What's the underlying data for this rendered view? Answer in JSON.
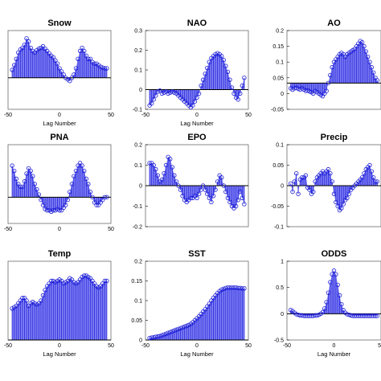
{
  "colors": {
    "stem": "#2b2bdc",
    "marker": "#1a1ad6",
    "fill": "#5a5af0",
    "axis": "#000000",
    "frame": "#6b6b6b"
  },
  "chart_data": [
    {
      "type": "stem",
      "title": "Snow",
      "xlabel": "Lag Number",
      "xlim": [
        -50,
        50
      ],
      "ylim": [
        -0.2,
        0.3
      ],
      "xticks": [
        "-50",
        "0",
        "50"
      ],
      "yticks": [],
      "x": [
        -46,
        -44,
        -42,
        -40,
        -38,
        -36,
        -34,
        -32,
        -30,
        -28,
        -26,
        -24,
        -22,
        -20,
        -18,
        -16,
        -14,
        -12,
        -10,
        -8,
        -6,
        -4,
        -2,
        0,
        2,
        4,
        6,
        8,
        10,
        12,
        14,
        16,
        18,
        20,
        22,
        24,
        26,
        28,
        30,
        32,
        34,
        36,
        38,
        40,
        42,
        44,
        46
      ],
      "values": [
        0.05,
        0.08,
        0.12,
        0.16,
        0.18,
        0.19,
        0.21,
        0.25,
        0.23,
        0.19,
        0.17,
        0.16,
        0.175,
        0.185,
        0.19,
        0.2,
        0.185,
        0.17,
        0.155,
        0.14,
        0.13,
        0.11,
        0.09,
        0.06,
        0.04,
        0.02,
        0.0,
        -0.01,
        -0.02,
        0.0,
        0.02,
        0.06,
        0.12,
        0.17,
        0.19,
        0.17,
        0.14,
        0.12,
        0.12,
        0.1,
        0.09,
        0.09,
        0.08,
        0.07,
        0.065,
        0.06,
        0.06
      ]
    },
    {
      "type": "stem",
      "title": "NAO",
      "xlabel": "Lag Number",
      "xlim": [
        -50,
        50
      ],
      "ylim": [
        -0.1,
        0.3
      ],
      "xticks": [
        "-50",
        "0",
        "50"
      ],
      "yticks": [
        "0.3",
        "0.2",
        "0.1",
        "0",
        "-0.1"
      ],
      "x": [
        -46,
        -44,
        -42,
        -40,
        -38,
        -36,
        -34,
        -32,
        -30,
        -28,
        -26,
        -24,
        -22,
        -20,
        -18,
        -16,
        -14,
        -12,
        -10,
        -8,
        -6,
        -4,
        -2,
        0,
        2,
        4,
        6,
        8,
        10,
        12,
        14,
        16,
        18,
        20,
        22,
        24,
        26,
        28,
        30,
        32,
        34,
        36,
        38,
        40,
        42,
        44,
        46
      ],
      "values": [
        -0.08,
        -0.07,
        -0.05,
        -0.03,
        -0.01,
        -0.005,
        -0.02,
        -0.015,
        -0.01,
        -0.02,
        -0.015,
        -0.01,
        -0.015,
        -0.02,
        -0.03,
        -0.04,
        -0.05,
        -0.06,
        -0.07,
        -0.08,
        -0.09,
        -0.08,
        -0.06,
        -0.04,
        -0.02,
        0.02,
        0.05,
        0.08,
        0.11,
        0.14,
        0.16,
        0.17,
        0.18,
        0.185,
        0.18,
        0.17,
        0.15,
        0.12,
        0.09,
        0.05,
        0.01,
        -0.02,
        -0.04,
        -0.05,
        -0.02,
        0.02,
        0.06
      ]
    },
    {
      "type": "stem",
      "title": "AO",
      "xlabel": "",
      "xlim": [
        -50,
        50
      ],
      "ylim": [
        -0.1,
        0.2
      ],
      "xticks": [],
      "yticks": [
        "0.2",
        "0.15",
        "0.1",
        "0.05",
        "0",
        "-0.05"
      ],
      "x": [
        -46,
        -44,
        -42,
        -40,
        -38,
        -36,
        -34,
        -32,
        -30,
        -28,
        -26,
        -24,
        -22,
        -20,
        -18,
        -16,
        -14,
        -12,
        -10,
        -8,
        -6,
        -4,
        -2,
        0,
        2,
        4,
        6,
        8,
        10,
        12,
        14,
        16,
        18,
        20,
        22,
        24,
        26,
        28,
        30,
        32,
        34,
        36,
        38,
        40,
        42,
        44,
        46
      ],
      "values": [
        -0.02,
        -0.025,
        -0.02,
        -0.018,
        -0.022,
        -0.025,
        -0.02,
        -0.025,
        -0.03,
        -0.028,
        -0.032,
        -0.035,
        -0.04,
        -0.03,
        -0.035,
        -0.04,
        -0.045,
        -0.05,
        -0.04,
        -0.03,
        0.0,
        0.03,
        0.06,
        0.08,
        0.09,
        0.1,
        0.11,
        0.115,
        0.11,
        0.1,
        0.11,
        0.115,
        0.12,
        0.125,
        0.13,
        0.14,
        0.15,
        0.16,
        0.155,
        0.14,
        0.12,
        0.1,
        0.08,
        0.06,
        0.04,
        0.02,
        0.01
      ]
    },
    {
      "type": "stem",
      "title": "PNA",
      "xlabel": "",
      "xlim": [
        -50,
        50
      ],
      "ylim": [
        -0.1,
        0.2
      ],
      "xticks": [
        "-50",
        "0",
        "50"
      ],
      "yticks": [],
      "x": [
        -46,
        -44,
        -42,
        -40,
        -38,
        -36,
        -34,
        -32,
        -30,
        -28,
        -26,
        -24,
        -22,
        -20,
        -18,
        -16,
        -14,
        -12,
        -10,
        -8,
        -6,
        -4,
        -2,
        0,
        2,
        4,
        6,
        8,
        10,
        12,
        14,
        16,
        18,
        20,
        22,
        24,
        26,
        28,
        30,
        32,
        34,
        36,
        38,
        40,
        42,
        44,
        46
      ],
      "values": [
        0.12,
        0.1,
        0.07,
        0.05,
        0.04,
        0.04,
        0.06,
        0.09,
        0.11,
        0.1,
        0.08,
        0.05,
        0.03,
        0.01,
        -0.01,
        -0.03,
        -0.045,
        -0.05,
        -0.05,
        -0.055,
        -0.05,
        -0.05,
        -0.045,
        -0.05,
        -0.05,
        -0.04,
        -0.03,
        -0.01,
        0.02,
        0.05,
        0.08,
        0.1,
        0.12,
        0.13,
        0.12,
        0.1,
        0.07,
        0.05,
        0.02,
        0.0,
        -0.02,
        -0.03,
        -0.03,
        -0.02,
        -0.01,
        0.0,
        0.0
      ]
    },
    {
      "type": "stem",
      "title": "EPO",
      "xlabel": "",
      "xlim": [
        -50,
        50
      ],
      "ylim": [
        -0.2,
        0.2
      ],
      "xticks": [],
      "yticks": [
        "0.2",
        "0.1",
        "0",
        "-0.1",
        "-0.2"
      ],
      "x": [
        -46,
        -44,
        -42,
        -40,
        -38,
        -36,
        -34,
        -32,
        -30,
        -28,
        -26,
        -24,
        -22,
        -20,
        -18,
        -16,
        -14,
        -12,
        -10,
        -8,
        -6,
        -4,
        -2,
        0,
        2,
        4,
        6,
        8,
        10,
        12,
        14,
        16,
        18,
        20,
        22,
        24,
        26,
        28,
        30,
        32,
        34,
        36,
        38,
        40,
        42,
        44,
        46
      ],
      "values": [
        0.11,
        0.11,
        0.1,
        0.08,
        0.05,
        0.02,
        0.03,
        0.06,
        0.1,
        0.14,
        0.13,
        0.09,
        0.05,
        0.02,
        0.0,
        -0.02,
        -0.05,
        -0.07,
        -0.08,
        -0.07,
        -0.06,
        -0.06,
        -0.05,
        -0.06,
        -0.04,
        -0.02,
        0.0,
        -0.02,
        -0.04,
        -0.06,
        -0.08,
        -0.05,
        -0.02,
        0.02,
        0.05,
        0.04,
        0.0,
        -0.03,
        -0.06,
        -0.08,
        -0.1,
        -0.11,
        -0.1,
        -0.07,
        -0.03,
        -0.06,
        -0.09
      ]
    },
    {
      "type": "stem",
      "title": "Precip",
      "xlabel": "",
      "xlim": [
        -50,
        50
      ],
      "ylim": [
        -0.1,
        0.1
      ],
      "xticks": [],
      "yticks": [
        "0.1",
        "0.05",
        "0",
        "-0.05",
        "-0.1"
      ],
      "x": [
        -46,
        -44,
        -42,
        -40,
        -38,
        -36,
        -34,
        -32,
        -30,
        -28,
        -26,
        -24,
        -22,
        -20,
        -18,
        -16,
        -14,
        -12,
        -10,
        -8,
        -6,
        -4,
        -2,
        0,
        2,
        4,
        6,
        8,
        10,
        12,
        14,
        16,
        18,
        20,
        22,
        24,
        26,
        28,
        30,
        32,
        34,
        36,
        38,
        40,
        42,
        44,
        46
      ],
      "values": [
        0.005,
        -0.015,
        0.01,
        0.03,
        -0.02,
        0.015,
        0.02,
        0.02,
        0.025,
        -0.005,
        -0.01,
        -0.02,
        -0.015,
        0.01,
        0.02,
        0.025,
        0.03,
        0.035,
        0.03,
        0.035,
        0.04,
        0.03,
        0.01,
        -0.02,
        -0.04,
        -0.05,
        -0.06,
        -0.055,
        -0.045,
        -0.035,
        -0.03,
        -0.02,
        -0.01,
        -0.005,
        0.0,
        0.005,
        0.01,
        0.015,
        0.02,
        0.03,
        0.04,
        0.045,
        0.05,
        0.035,
        0.02,
        0.01,
        0.01
      ]
    },
    {
      "type": "stem",
      "title": "Temp",
      "xlabel": "Lag Number",
      "xlim": [
        -50,
        50
      ],
      "ylim": [
        0,
        0.3
      ],
      "xticks": [
        "-50",
        "0",
        "50"
      ],
      "yticks": [],
      "x": [
        -46,
        -44,
        -42,
        -40,
        -38,
        -36,
        -34,
        -32,
        -30,
        -28,
        -26,
        -24,
        -22,
        -20,
        -18,
        -16,
        -14,
        -12,
        -10,
        -8,
        -6,
        -4,
        -2,
        0,
        2,
        4,
        6,
        8,
        10,
        12,
        14,
        16,
        18,
        20,
        22,
        24,
        26,
        28,
        30,
        32,
        34,
        36,
        38,
        40,
        42,
        44,
        46
      ],
      "values": [
        0.12,
        0.125,
        0.13,
        0.14,
        0.15,
        0.16,
        0.16,
        0.15,
        0.13,
        0.14,
        0.145,
        0.14,
        0.135,
        0.14,
        0.15,
        0.17,
        0.19,
        0.205,
        0.215,
        0.225,
        0.225,
        0.22,
        0.225,
        0.23,
        0.225,
        0.215,
        0.22,
        0.225,
        0.235,
        0.23,
        0.22,
        0.215,
        0.22,
        0.23,
        0.24,
        0.245,
        0.245,
        0.24,
        0.235,
        0.225,
        0.215,
        0.205,
        0.2,
        0.205,
        0.215,
        0.225,
        0.225
      ]
    },
    {
      "type": "stem",
      "title": "SST",
      "xlabel": "Lag Number",
      "xlim": [
        -50,
        50
      ],
      "ylim": [
        0,
        0.2
      ],
      "xticks": [
        "-50",
        "0",
        "50"
      ],
      "yticks": [
        "0.2",
        "0.15",
        "0.1",
        "0.05",
        "0"
      ],
      "x": [
        -46,
        -44,
        -42,
        -40,
        -38,
        -36,
        -34,
        -32,
        -30,
        -28,
        -26,
        -24,
        -22,
        -20,
        -18,
        -16,
        -14,
        -12,
        -10,
        -8,
        -6,
        -4,
        -2,
        0,
        2,
        4,
        6,
        8,
        10,
        12,
        14,
        16,
        18,
        20,
        22,
        24,
        26,
        28,
        30,
        32,
        34,
        36,
        38,
        40,
        42,
        44,
        46
      ],
      "values": [
        0.005,
        0.006,
        0.007,
        0.008,
        0.009,
        0.01,
        0.012,
        0.014,
        0.016,
        0.018,
        0.02,
        0.022,
        0.024,
        0.026,
        0.028,
        0.03,
        0.032,
        0.034,
        0.036,
        0.038,
        0.041,
        0.045,
        0.05,
        0.055,
        0.06,
        0.066,
        0.072,
        0.078,
        0.085,
        0.092,
        0.1,
        0.107,
        0.113,
        0.119,
        0.124,
        0.128,
        0.13,
        0.132,
        0.133,
        0.133,
        0.133,
        0.133,
        0.133,
        0.132,
        0.132,
        0.131,
        0.131
      ]
    },
    {
      "type": "stem",
      "title": "ODDS",
      "xlabel": "Lag Number",
      "xlim": [
        -50,
        50
      ],
      "ylim": [
        -0.5,
        1
      ],
      "xticks": [
        "-50",
        "0",
        "50"
      ],
      "yticks": [
        "1",
        "0.5",
        "0",
        "-0.5"
      ],
      "x": [
        -46,
        -44,
        -42,
        -40,
        -38,
        -36,
        -34,
        -32,
        -30,
        -28,
        -26,
        -24,
        -22,
        -20,
        -18,
        -16,
        -14,
        -12,
        -10,
        -8,
        -6,
        -4,
        -2,
        0,
        2,
        4,
        6,
        8,
        10,
        12,
        14,
        16,
        18,
        20,
        22,
        24,
        26,
        28,
        30,
        32,
        34,
        36,
        38,
        40,
        42,
        44,
        46
      ],
      "values": [
        0.07,
        0.05,
        0.02,
        -0.01,
        -0.02,
        -0.03,
        -0.03,
        -0.04,
        -0.04,
        -0.04,
        -0.04,
        -0.04,
        -0.04,
        -0.03,
        -0.03,
        -0.02,
        0.0,
        0.03,
        0.1,
        0.22,
        0.4,
        0.6,
        0.75,
        0.82,
        0.75,
        0.55,
        0.35,
        0.18,
        0.07,
        0.02,
        -0.01,
        -0.02,
        -0.03,
        -0.04,
        -0.04,
        -0.04,
        -0.04,
        -0.04,
        -0.04,
        -0.04,
        -0.04,
        -0.04,
        -0.04,
        -0.04,
        -0.04,
        -0.04,
        -0.04
      ]
    }
  ]
}
